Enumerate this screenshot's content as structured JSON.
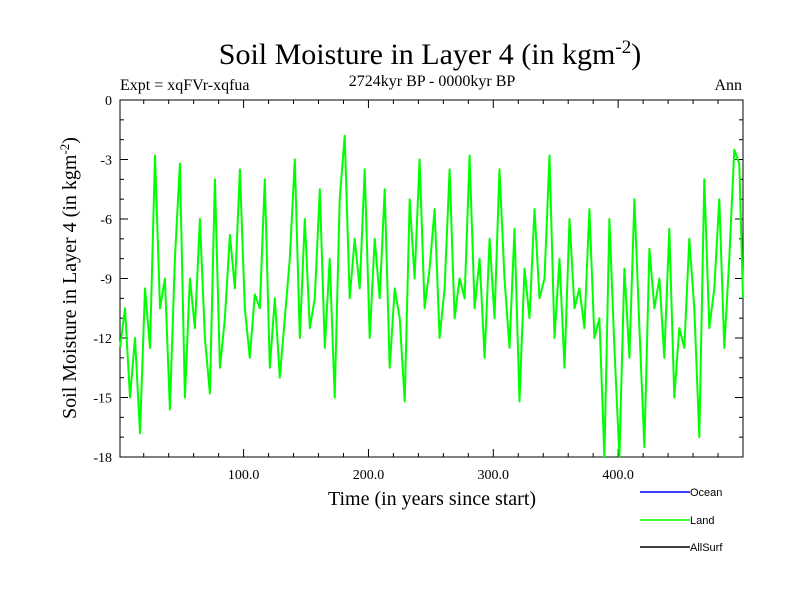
{
  "chart_data": {
    "type": "line",
    "title": "Soil Moisture in Layer 4 (in kgm",
    "title_sup": "-2",
    "title_close": ")",
    "subtitle": "2724kyr BP - 0000kyr BP",
    "left_label": "Expt = xqFVr-xqfua",
    "right_label": "Ann",
    "xlabel": "Time (in years since start)",
    "ylabel": "Soil Moisture in Layer 4 (in kgm",
    "ylabel_sup": "-2",
    "ylabel_close": ")",
    "xlim": [
      1,
      500
    ],
    "ylim": [
      -18,
      0
    ],
    "xticks": [
      100,
      200,
      300,
      400
    ],
    "xtick_labels": [
      "100.0",
      "200.0",
      "300.0",
      "400.0"
    ],
    "yticks": [
      0,
      -3,
      -6,
      -9,
      -12,
      -15,
      -18
    ],
    "ytick_labels": [
      "0",
      "-3",
      "-6",
      "-9",
      "-12",
      "-15",
      "-18"
    ],
    "legend": [
      {
        "name": "Ocean",
        "color": "#0000ff"
      },
      {
        "name": "Land",
        "color": "#00ff00"
      },
      {
        "name": "AllSurf",
        "color": "#000000"
      }
    ],
    "series": [
      {
        "name": "Land",
        "color": "#00ff00",
        "x": [
          1,
          5,
          9,
          13,
          17,
          21,
          25,
          29,
          33,
          37,
          41,
          45,
          49,
          53,
          57,
          61,
          65,
          69,
          73,
          77,
          81,
          85,
          89,
          93,
          97,
          101,
          105,
          109,
          113,
          117,
          121,
          125,
          129,
          133,
          137,
          141,
          145,
          149,
          153,
          157,
          161,
          165,
          169,
          173,
          177,
          181,
          185,
          189,
          193,
          197,
          201,
          205,
          209,
          213,
          217,
          221,
          225,
          229,
          233,
          237,
          241,
          245,
          249,
          253,
          257,
          261,
          265,
          269,
          273,
          277,
          281,
          285,
          289,
          293,
          297,
          301,
          305,
          309,
          313,
          317,
          321,
          325,
          329,
          333,
          337,
          341,
          345,
          349,
          353,
          357,
          361,
          365,
          369,
          373,
          377,
          381,
          385,
          389,
          393,
          397,
          401,
          405,
          409,
          413,
          417,
          421,
          425,
          429,
          433,
          437,
          441,
          445,
          449,
          453,
          457,
          461,
          465,
          469,
          473,
          477,
          481,
          485,
          489,
          493,
          497,
          500
        ],
        "values": [
          -12.5,
          -10.5,
          -15.0,
          -12.0,
          -16.8,
          -9.5,
          -12.5,
          -2.8,
          -10.5,
          -9.0,
          -15.6,
          -8.0,
          -3.2,
          -15.0,
          -9.0,
          -11.5,
          -6.0,
          -12.0,
          -14.8,
          -4.0,
          -13.5,
          -11.0,
          -6.8,
          -9.5,
          -3.5,
          -10.5,
          -13.0,
          -9.8,
          -10.5,
          -4.0,
          -13.5,
          -10.0,
          -14.0,
          -11.0,
          -8.0,
          -3.0,
          -12.0,
          -6.0,
          -11.5,
          -10.0,
          -4.5,
          -12.5,
          -8.0,
          -15.0,
          -5.0,
          -1.8,
          -10.0,
          -7.0,
          -9.5,
          -3.5,
          -12.0,
          -7.0,
          -10.0,
          -4.5,
          -13.5,
          -9.5,
          -11.0,
          -15.2,
          -5.0,
          -9.0,
          -3.0,
          -10.5,
          -8.5,
          -5.5,
          -12.0,
          -9.5,
          -3.5,
          -11.0,
          -9.0,
          -10.0,
          -2.8,
          -10.5,
          -8.0,
          -13.0,
          -7.0,
          -11.0,
          -3.5,
          -9.0,
          -12.5,
          -6.5,
          -15.2,
          -8.5,
          -11.0,
          -5.5,
          -10.0,
          -9.0,
          -2.8,
          -12.0,
          -8.0,
          -13.5,
          -6.0,
          -10.5,
          -9.5,
          -11.5,
          -5.5,
          -12.0,
          -11.0,
          -18.0,
          -6.0,
          -12.5,
          -18.0,
          -8.5,
          -13.0,
          -5.0,
          -11.5,
          -17.5,
          -7.5,
          -10.5,
          -9.0,
          -13.0,
          -6.5,
          -15.0,
          -11.5,
          -12.5,
          -7.0,
          -10.5,
          -17.0,
          -4.0,
          -11.5,
          -9.5,
          -5.0,
          -12.5,
          -8.0,
          -2.5,
          -3.2,
          -10.0
        ]
      }
    ]
  }
}
